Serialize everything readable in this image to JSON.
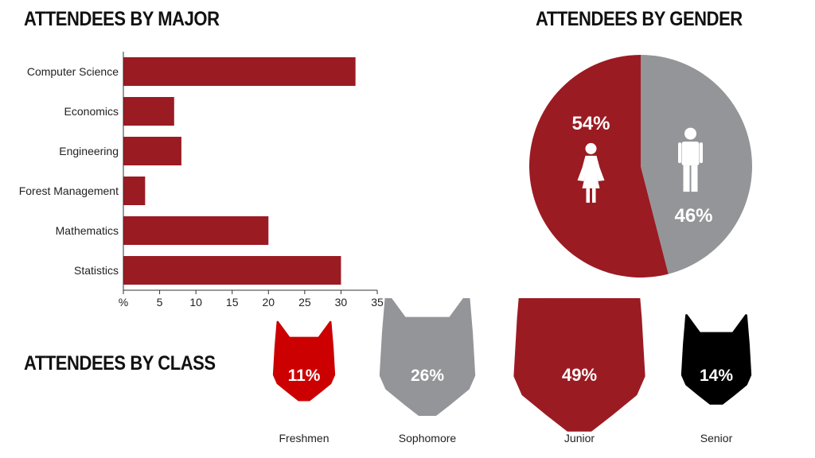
{
  "charts": {
    "major": {
      "title": "ATTENDEES BY MAJOR",
      "chart_data": {
        "type": "bar",
        "orientation": "horizontal",
        "categories": [
          "Computer Science",
          "Economics",
          "Engineering",
          "Forest Management",
          "Mathematics",
          "Statistics"
        ],
        "values": [
          32,
          7,
          8,
          3,
          20,
          30
        ],
        "xlim": [
          0,
          35
        ],
        "xticks": [
          "%",
          "5",
          "10",
          "15",
          "20",
          "25",
          "30",
          "35"
        ],
        "color": "#9b1b23"
      }
    },
    "gender": {
      "title": "ATTENDEES BY GENDER",
      "chart_data": {
        "type": "pie",
        "labels": [
          "54%",
          "46%"
        ],
        "values": [
          54,
          46
        ],
        "icons": [
          "female-icon",
          "male-icon"
        ],
        "colors": [
          "#9b1b23",
          "#939598"
        ]
      }
    },
    "class": {
      "title": "ATTENDEES BY CLASS",
      "chart_data": {
        "type": "other",
        "categories": [
          "Freshmen",
          "Sophomore",
          "Junior",
          "Senior"
        ],
        "values": [
          11,
          26,
          49,
          14
        ],
        "labels": [
          "11%",
          "26%",
          "49%",
          "14%"
        ],
        "icon": "wolf-head-icon",
        "colors": [
          "#cc0000",
          "#939598",
          "#9b1b23",
          "#000000"
        ]
      }
    }
  }
}
